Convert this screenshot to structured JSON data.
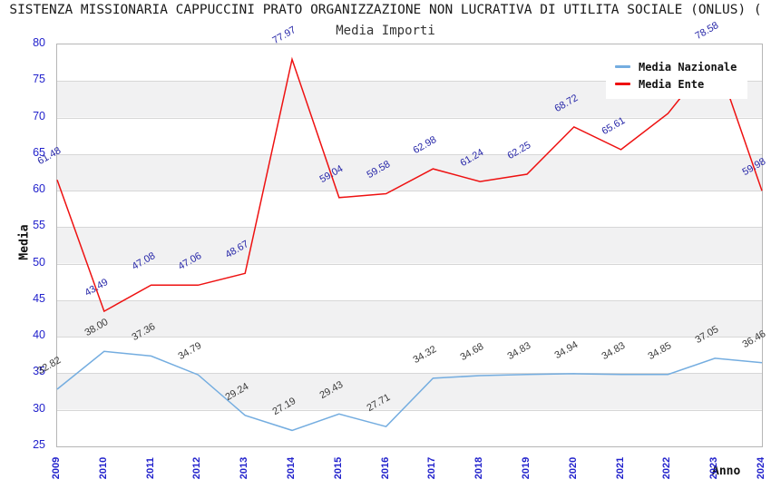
{
  "header": {
    "title": "SISTENZA MISSIONARIA CAPPUCCINI PRATO ORGANIZZAZIONE NON LUCRATIVA DI UTILITA SOCIALE (ONLUS) ("
  },
  "chart_data": {
    "type": "line",
    "title": "Media Importi",
    "xlabel": "Anno",
    "ylabel": "Media",
    "ylim": [
      25,
      80
    ],
    "ytick_step": 5,
    "grid": "horizontal-bands-and-gridlines",
    "legend_position": "top-right",
    "categories": [
      "2009",
      "2010",
      "2011",
      "2012",
      "2013",
      "2014",
      "2015",
      "2016",
      "2017",
      "2018",
      "2019",
      "2020",
      "2021",
      "2022",
      "2023",
      "2024"
    ],
    "series": [
      {
        "name": "Media Nazionale",
        "color": "#74ade0",
        "label_color": "#3a3a3a",
        "values": [
          32.82,
          38.0,
          37.36,
          34.79,
          29.24,
          27.19,
          29.43,
          27.71,
          34.32,
          34.68,
          34.83,
          34.94,
          34.83,
          34.85,
          37.05,
          36.46
        ]
      },
      {
        "name": "Media Ente",
        "color": "#ee1111",
        "label_color": "#2626a8",
        "values": [
          61.48,
          43.49,
          47.08,
          47.06,
          48.67,
          77.97,
          59.04,
          59.58,
          62.98,
          61.24,
          62.25,
          68.72,
          65.61,
          70.55,
          78.58,
          59.98
        ]
      }
    ],
    "colors": {
      "tick_label": "#2222cc",
      "band_gray": "#f1f1f2",
      "gridline": "#d7d7d7",
      "plot_border": "#b6b6b6"
    }
  }
}
